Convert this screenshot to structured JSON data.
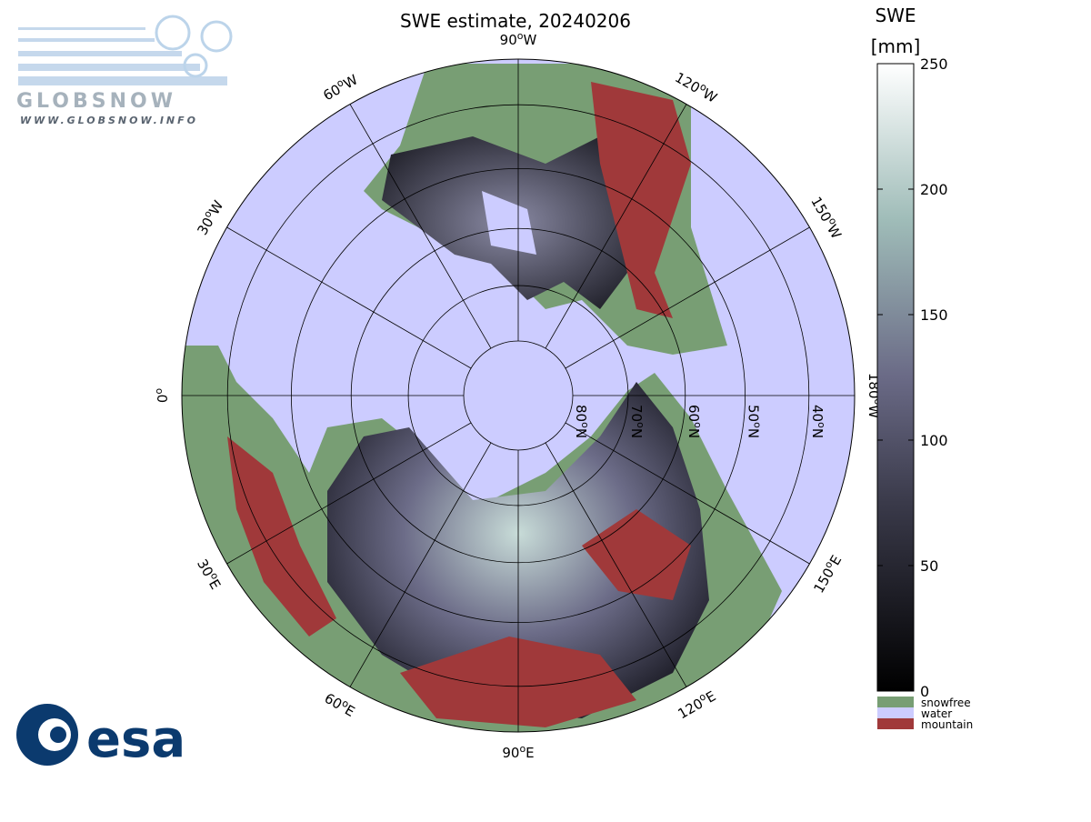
{
  "header": {
    "title": "SWE estimate, 20240206"
  },
  "logos": {
    "globsnow": "GLOBSNOW",
    "globsnow_url": "WWW.GLOBSNOW.INFO",
    "esa": "esa"
  },
  "map": {
    "degree_mark": "o",
    "latitudes": [
      {
        "lat": 80,
        "dir": "N"
      },
      {
        "lat": 70,
        "dir": "N"
      },
      {
        "lat": 60,
        "dir": "N"
      },
      {
        "lat": 50,
        "dir": "N"
      },
      {
        "lat": 40,
        "dir": "N"
      }
    ],
    "longitudes": [
      {
        "lon": 0
      },
      {
        "lon": 30,
        "dir": "W"
      },
      {
        "lon": 60,
        "dir": "W"
      },
      {
        "lon": 90,
        "dir": "W"
      },
      {
        "lon": 120,
        "dir": "W"
      },
      {
        "lon": 150,
        "dir": "W"
      },
      {
        "lon": 180,
        "dir": "W"
      },
      {
        "lon": 150,
        "dir": "E"
      },
      {
        "lon": 120,
        "dir": "E"
      },
      {
        "lon": 90,
        "dir": "E"
      },
      {
        "lon": 60,
        "dir": "E"
      },
      {
        "lon": 30,
        "dir": "E"
      }
    ]
  },
  "colorbar": {
    "title": "SWE",
    "unit": "[mm]",
    "range": [
      0,
      250
    ],
    "ticks": [
      0,
      50,
      100,
      150,
      200,
      250
    ],
    "classes": [
      {
        "label": "snowfree",
        "color": "#789e74"
      },
      {
        "label": "water",
        "color": "#ccccff"
      },
      {
        "label": "mountain",
        "color": "#a0393a"
      }
    ]
  }
}
